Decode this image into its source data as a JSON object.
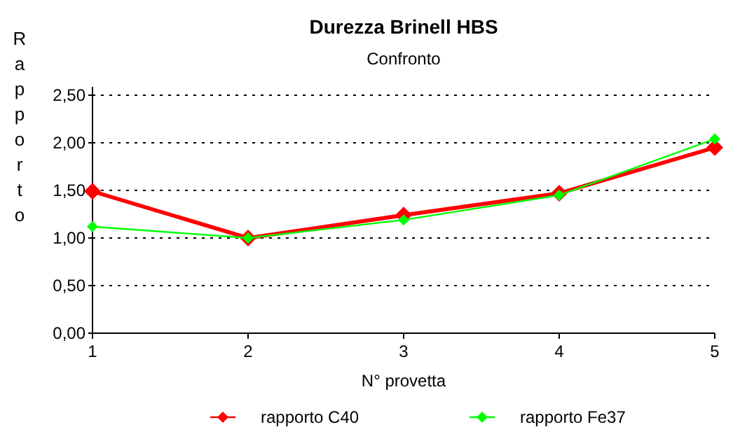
{
  "chart_data": {
    "type": "line",
    "title": "Durezza Brinell HBS",
    "subtitle": "Confronto",
    "xlabel": "N° provetta",
    "ylabel": "Rapporto",
    "x": [
      1,
      2,
      3,
      4,
      5
    ],
    "xlim": [
      1,
      5
    ],
    "xticks": [
      1,
      2,
      3,
      4,
      5
    ],
    "ylim": [
      0,
      2.5
    ],
    "yticks": [
      {
        "value": 0,
        "label": "0,00"
      },
      {
        "value": 0.5,
        "label": "0,50"
      },
      {
        "value": 1,
        "label": "1,00"
      },
      {
        "value": 1.5,
        "label": "1,50"
      },
      {
        "value": 2,
        "label": "2,00"
      },
      {
        "value": 2.5,
        "label": "2,50"
      }
    ],
    "grid": "y",
    "legend": "bottom",
    "marker": "diamond",
    "line_style": "solid",
    "series": [
      {
        "name": "rapporto C40",
        "color": "#ff0000",
        "values": [
          1.49,
          1.0,
          1.24,
          1.47,
          1.95
        ]
      },
      {
        "name": "rapporto Fe37",
        "color": "#00ff00",
        "values": [
          1.12,
          1.0,
          1.19,
          1.45,
          2.04
        ]
      }
    ]
  }
}
